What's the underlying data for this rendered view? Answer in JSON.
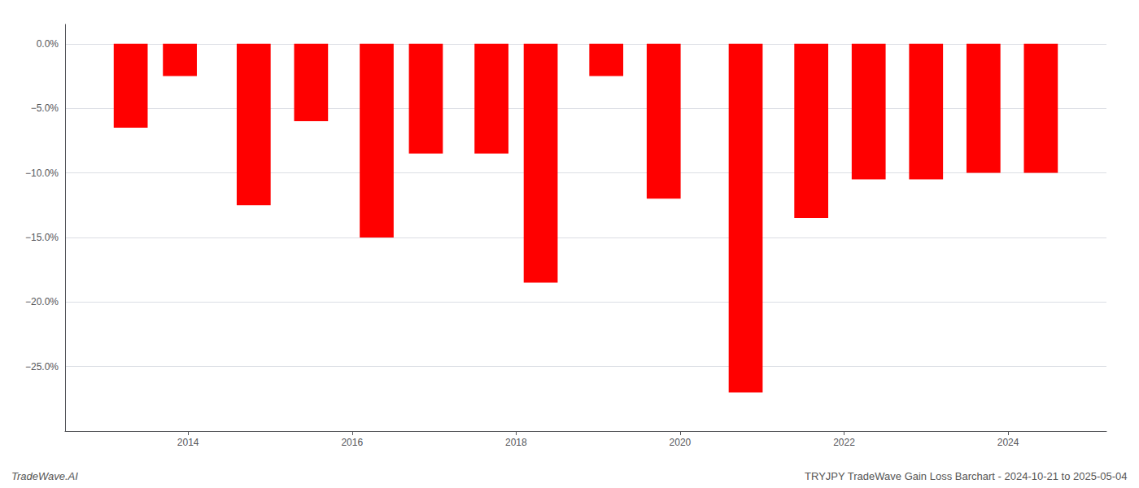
{
  "chart_data": {
    "type": "bar",
    "x": [
      2013.3,
      2013.9,
      2014.8,
      2015.5,
      2016.3,
      2016.9,
      2017.7,
      2018.3,
      2019.1,
      2019.8,
      2020.8,
      2021.6,
      2022.3,
      2023.0,
      2023.7,
      2024.4
    ],
    "values": [
      -6.5,
      -2.5,
      -12.5,
      -6.0,
      -15.0,
      -8.5,
      -8.5,
      -18.5,
      -2.5,
      -12.0,
      -27.0,
      -13.5,
      -10.5,
      -10.5,
      -10.0,
      -10.0
    ],
    "color": "#ff0000",
    "xlim": [
      2012.5,
      2025.2
    ],
    "xticks": [
      2014,
      2016,
      2018,
      2020,
      2022,
      2024
    ],
    "ylim": [
      -30,
      1.5
    ],
    "yticks": [
      {
        "value": 0.0,
        "label": "0.0%"
      },
      {
        "value": -5.0,
        "label": "−5.0%"
      },
      {
        "value": -10.0,
        "label": "−10.0%"
      },
      {
        "value": -15.0,
        "label": "−15.0%"
      },
      {
        "value": -20.0,
        "label": "−20.0%"
      },
      {
        "value": -25.0,
        "label": "−25.0%"
      }
    ],
    "grid": true,
    "annotations": [
      "TradeWave.AI",
      "TRYJPY TradeWave Gain Loss Barchart - 2024-10-21 to 2025-05-04"
    ]
  }
}
